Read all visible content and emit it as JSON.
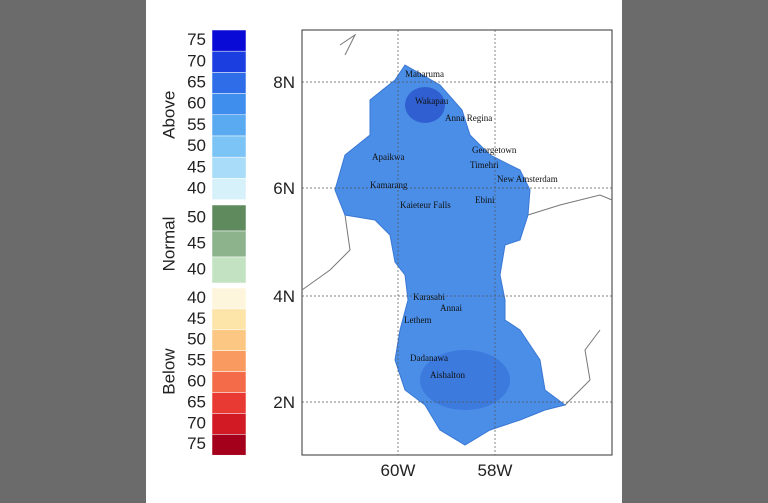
{
  "legend": {
    "groups": [
      {
        "title": "Above",
        "labels": [
          "75",
          "70",
          "65",
          "60",
          "55",
          "50",
          "45",
          "40"
        ]
      },
      {
        "title": "Normal",
        "labels": [
          "50",
          "45",
          "40"
        ]
      },
      {
        "title": "Below",
        "labels": [
          "40",
          "45",
          "50",
          "55",
          "60",
          "65",
          "70",
          "75"
        ]
      }
    ]
  },
  "map": {
    "lat_labels": [
      "8N",
      "6N",
      "4N",
      "2N"
    ],
    "lon_labels": [
      "60W",
      "58W"
    ],
    "places": [
      "Mabaruma",
      "Wakapau",
      "Anna Regina",
      "Georgetown",
      "Timehri",
      "New Amsterdam",
      "Apaikwa",
      "Kamarang",
      "Kaieteur Falls",
      "Ebini",
      "Karasabi",
      "Annai",
      "Lethem",
      "Dadanawa",
      "Aishalton"
    ]
  }
}
